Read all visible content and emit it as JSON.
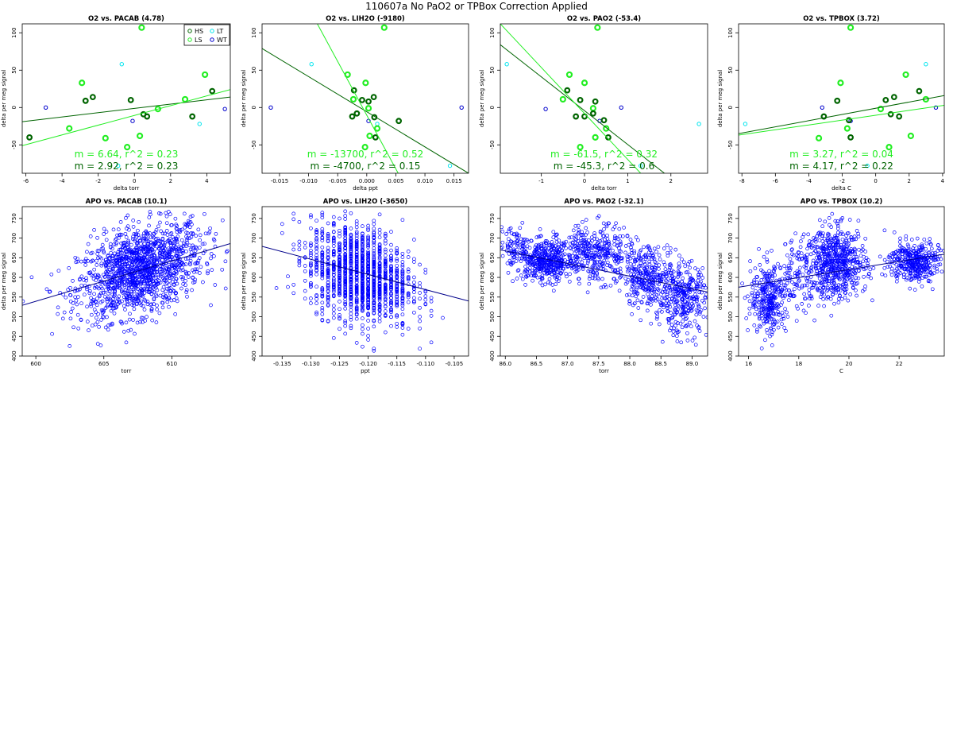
{
  "main_title": "110607a   No PaO2 or TPBox Correction Applied",
  "colors": {
    "HS": "#006400",
    "LS": "#22ee22",
    "LT": "#00e5ee",
    "WT": "#0000cd",
    "apo_points": "#0000ff",
    "apo_line": "#00008b"
  },
  "legend": {
    "position": "top-right of first panel",
    "entries": [
      {
        "label": "HS",
        "color": "#006400"
      },
      {
        "label": "LT",
        "color": "#00e5ee"
      },
      {
        "label": "LS",
        "color": "#22ee22"
      },
      {
        "label": "WT",
        "color": "#0000cd"
      }
    ]
  },
  "chart_data": [
    {
      "type": "scatter",
      "title": "O2 vs. PACAB (4.78)",
      "xlabel": "delta torr",
      "ylabel": "delta per meg signal",
      "xlim": [
        -6.2,
        5.3
      ],
      "ylim": [
        -88,
        112
      ],
      "xticks": [
        "-6",
        "-4",
        "-2",
        "0",
        "2",
        "4"
      ],
      "xtick_values": [
        -6,
        -4,
        -2,
        0,
        2,
        4
      ],
      "yticks": [
        "-50",
        "0",
        "50",
        "100"
      ],
      "ytick_values": [
        -50,
        0,
        50,
        100
      ],
      "legend": true,
      "points": {
        "HS": [
          [
            -5.8,
            -40
          ],
          [
            -2.7,
            9
          ],
          [
            -2.3,
            14
          ],
          [
            -0.2,
            10
          ],
          [
            0.5,
            -9
          ],
          [
            0.7,
            -12
          ],
          [
            3.2,
            -12
          ],
          [
            4.3,
            22
          ]
        ],
        "LS": [
          [
            -2.9,
            33
          ],
          [
            -3.6,
            -28
          ],
          [
            -1.6,
            -41
          ],
          [
            -0.4,
            -53
          ],
          [
            0.3,
            -38
          ],
          [
            1.3,
            -2
          ],
          [
            2.8,
            11
          ],
          [
            3.9,
            44
          ],
          [
            0.4,
            107
          ]
        ],
        "LT": [
          [
            -0.7,
            58
          ],
          [
            3.6,
            -22
          ],
          [
            -0.9,
            -78
          ]
        ],
        "WT": [
          [
            -4.9,
            0
          ],
          [
            5.0,
            -2
          ],
          [
            -0.1,
            -18
          ]
        ]
      },
      "regression": [
        {
          "group": "HS",
          "slope": 2.92,
          "r2": 0.23,
          "color": "#006400",
          "x": [
            -6.2,
            5.3
          ],
          "y": [
            -19,
            14
          ]
        },
        {
          "group": "LS",
          "slope": 6.64,
          "r2": 0.23,
          "color": "#22ee22",
          "x": [
            -6.2,
            5.3
          ],
          "y": [
            -51,
            24
          ]
        }
      ],
      "annotations": [
        {
          "text": "m = 6.64, r^2 = 0.23",
          "color": "#22ee22"
        },
        {
          "text": "m = 2.92, r^2 = 0.23",
          "color": "#006400"
        }
      ]
    },
    {
      "type": "scatter",
      "title": "O2 vs. LIH2O (-9180)",
      "xlabel": "delta ppt",
      "ylabel": "delta per meg signal",
      "xlim": [
        -0.018,
        0.0175
      ],
      "ylim": [
        -88,
        112
      ],
      "xticks": [
        "-0.015",
        "-0.010",
        "-0.005",
        "0.000",
        "0.005",
        "0.010",
        "0.015"
      ],
      "xtick_values": [
        -0.015,
        -0.01,
        -0.005,
        0,
        0.005,
        0.01,
        0.015
      ],
      "yticks": [
        "-50",
        "0",
        "50",
        "100"
      ],
      "ytick_values": [
        -50,
        0,
        50,
        100
      ],
      "points": {
        "HS": [
          [
            -0.0022,
            23
          ],
          [
            -0.0025,
            -12
          ],
          [
            -0.0017,
            -8
          ],
          [
            -0.0008,
            10
          ],
          [
            0.0003,
            8
          ],
          [
            0.0012,
            14
          ],
          [
            0.0013,
            -13
          ],
          [
            0.0015,
            -40
          ],
          [
            0.0055,
            -18
          ]
        ],
        "LS": [
          [
            -0.0033,
            44
          ],
          [
            -0.0002,
            33
          ],
          [
            -0.0023,
            11
          ],
          [
            0.0003,
            -1
          ],
          [
            0.0005,
            -38
          ],
          [
            0.0018,
            -28
          ],
          [
            -0.0003,
            -53
          ],
          [
            0.003,
            107
          ]
        ],
        "LT": [
          [
            -0.0095,
            58
          ],
          [
            0.0018,
            -22
          ],
          [
            0.0143,
            -78
          ]
        ],
        "WT": [
          [
            -0.0165,
            0
          ],
          [
            0.0163,
            0
          ],
          [
            0.0003,
            -18
          ]
        ]
      },
      "regression": [
        {
          "group": "HS",
          "slope": -4700,
          "r2": 0.15,
          "color": "#006400",
          "x": [
            -0.018,
            0.0175
          ],
          "y": [
            79,
            -88
          ]
        },
        {
          "group": "LS",
          "slope": -13700,
          "r2": 0.52,
          "color": "#22ee22",
          "x": [
            -0.0085,
            0.0054
          ],
          "y": [
            112,
            -88
          ]
        }
      ],
      "annotations": [
        {
          "text": "m = -13700, r^2 = 0.52",
          "color": "#22ee22"
        },
        {
          "text": "m = -4700, r^2 = 0.15",
          "color": "#006400"
        }
      ]
    },
    {
      "type": "scatter",
      "title": "O2 vs. PAO2 (-53.4)",
      "xlabel": "delta torr",
      "ylabel": "delta per meg signal",
      "xlim": [
        -1.95,
        2.85
      ],
      "ylim": [
        -88,
        112
      ],
      "xticks": [
        "-1",
        "0",
        "1",
        "2"
      ],
      "xtick_values": [
        -1,
        0,
        1,
        2
      ],
      "yticks": [
        "-50",
        "0",
        "50",
        "100"
      ],
      "ytick_values": [
        -50,
        0,
        50,
        100
      ],
      "points": {
        "HS": [
          [
            -0.4,
            23
          ],
          [
            -0.2,
            -12
          ],
          [
            -0.1,
            10
          ],
          [
            0.0,
            -12
          ],
          [
            0.2,
            -8
          ],
          [
            0.25,
            8
          ],
          [
            0.45,
            -17
          ],
          [
            0.55,
            -40
          ]
        ],
        "LS": [
          [
            -0.5,
            11
          ],
          [
            -0.35,
            44
          ],
          [
            0.0,
            33
          ],
          [
            0.2,
            -1
          ],
          [
            0.25,
            -40
          ],
          [
            0.5,
            -28
          ],
          [
            -0.1,
            -53
          ],
          [
            0.3,
            107
          ]
        ],
        "LT": [
          [
            -1.8,
            58
          ],
          [
            1.3,
            -78
          ],
          [
            2.65,
            -22
          ]
        ],
        "WT": [
          [
            0.85,
            0
          ],
          [
            -0.9,
            -2
          ],
          [
            0.35,
            -18
          ]
        ]
      },
      "regression": [
        {
          "group": "HS",
          "slope": -45.3,
          "r2": 0.6,
          "color": "#006400",
          "x": [
            -1.95,
            1.85
          ],
          "y": [
            84,
            -88
          ]
        },
        {
          "group": "LS",
          "slope": -61.5,
          "r2": 0.32,
          "color": "#22ee22",
          "x": [
            -1.95,
            1.3
          ],
          "y": [
            112,
            -88
          ]
        }
      ],
      "annotations": [
        {
          "text": "m = -61.5, r^2 = 0.32",
          "color": "#22ee22"
        },
        {
          "text": "m = -45.3, r^2 = 0.6",
          "color": "#006400"
        }
      ]
    },
    {
      "type": "scatter",
      "title": "O2 vs. TPBOX (3.72)",
      "xlabel": "delta C",
      "ylabel": "delta per meg signal",
      "xlim": [
        -8.2,
        4.1
      ],
      "ylim": [
        -88,
        112
      ],
      "xticks": [
        "-8",
        "-6",
        "-4",
        "-2",
        "0",
        "2",
        "4"
      ],
      "xtick_values": [
        -8,
        -6,
        -4,
        -2,
        0,
        2,
        4
      ],
      "yticks": [
        "-50",
        "0",
        "50",
        "100"
      ],
      "ytick_values": [
        -50,
        0,
        50,
        100
      ],
      "points": {
        "HS": [
          [
            -2.3,
            9
          ],
          [
            -1.6,
            -17
          ],
          [
            -1.5,
            -40
          ],
          [
            -3.1,
            -12
          ],
          [
            0.6,
            10
          ],
          [
            1.1,
            14
          ],
          [
            0.9,
            -9
          ],
          [
            1.4,
            -12
          ],
          [
            2.6,
            22
          ]
        ],
        "LS": [
          [
            -2.1,
            33
          ],
          [
            -1.7,
            -28
          ],
          [
            -3.4,
            -41
          ],
          [
            0.8,
            -53
          ],
          [
            1.8,
            44
          ],
          [
            2.1,
            -38
          ],
          [
            3.0,
            11
          ],
          [
            0.3,
            -2
          ],
          [
            -1.5,
            107
          ]
        ],
        "LT": [
          [
            3.0,
            58
          ],
          [
            -7.8,
            -22
          ],
          [
            -0.5,
            -78
          ]
        ],
        "WT": [
          [
            -3.2,
            0
          ],
          [
            3.6,
            0
          ],
          [
            -1.5,
            -18
          ]
        ]
      },
      "regression": [
        {
          "group": "HS",
          "slope": 4.17,
          "r2": 0.22,
          "color": "#006400",
          "x": [
            -8.2,
            4.1
          ],
          "y": [
            -35,
            16
          ]
        },
        {
          "group": "LS",
          "slope": 3.27,
          "r2": 0.04,
          "color": "#22ee22",
          "x": [
            -8.2,
            4.1
          ],
          "y": [
            -37,
            3
          ]
        }
      ],
      "annotations": [
        {
          "text": "m = 3.27, r^2 = 0.04",
          "color": "#22ee22"
        },
        {
          "text": "m = 4.17, r^2 = 0.22",
          "color": "#006400"
        }
      ]
    },
    {
      "type": "scatter",
      "title": "APO vs. PACAB (10.1)",
      "xlabel": "torr",
      "ylabel": "delta per meg signal",
      "xlim": [
        599,
        614.3
      ],
      "ylim": [
        400,
        780
      ],
      "xticks": [
        "600",
        "605",
        "610"
      ],
      "xtick_values": [
        600,
        605,
        610
      ],
      "yticks": [
        "400",
        "450",
        "500",
        "550",
        "600",
        "650",
        "700",
        "750"
      ],
      "ytick_values": [
        400,
        450,
        500,
        550,
        600,
        650,
        700,
        750
      ],
      "cloud": {
        "n": 1400,
        "x_center": 607.7,
        "x_sd": 2.3,
        "y_center": 618,
        "y_sd": 55,
        "slope": 10.1
      },
      "regression": {
        "slope": 10.1,
        "color": "#00008b",
        "x": [
          599,
          614.3
        ],
        "y": [
          529,
          686
        ]
      }
    },
    {
      "type": "scatter",
      "title": "APO vs. LIH2O (-3650)",
      "xlabel": "ppt",
      "ylabel": "delta per meg signal",
      "xlim": [
        -0.1385,
        -0.1025
      ],
      "ylim": [
        400,
        780
      ],
      "xticks": [
        "-0.135",
        "-0.130",
        "-0.125",
        "-0.120",
        "-0.115",
        "-0.110",
        "-0.105"
      ],
      "xtick_values": [
        -0.135,
        -0.13,
        -0.125,
        -0.12,
        -0.115,
        -0.11,
        -0.105
      ],
      "yticks": [
        "400",
        "450",
        "500",
        "550",
        "600",
        "650",
        "700",
        "750"
      ],
      "ytick_values": [
        400,
        450,
        500,
        550,
        600,
        650,
        700,
        750
      ],
      "cloud": {
        "n": 1400,
        "x_center": -0.1215,
        "x_sd": 0.0045,
        "y_center": 610,
        "y_sd": 60,
        "slope": -3650,
        "quantize": 0.001
      },
      "regression": {
        "slope": -3650,
        "color": "#00008b",
        "x": [
          -0.1385,
          -0.1025
        ],
        "y": [
          679,
          540
        ]
      }
    },
    {
      "type": "scatter",
      "title": "APO vs. PAO2 (-32.1)",
      "xlabel": "torr",
      "ylabel": "delta per meg signal",
      "xlim": [
        85.92,
        89.25
      ],
      "ylim": [
        400,
        780
      ],
      "xticks": [
        "86.0",
        "86.5",
        "87.0",
        "87.5",
        "88.0",
        "88.5",
        "89.0"
      ],
      "xtick_values": [
        86.0,
        86.5,
        87.0,
        87.5,
        88.0,
        88.5,
        89.0
      ],
      "yticks": [
        "400",
        "450",
        "500",
        "550",
        "600",
        "650",
        "700",
        "750"
      ],
      "ytick_values": [
        400,
        450,
        500,
        550,
        600,
        650,
        700,
        750
      ],
      "clusters": [
        {
          "n": 420,
          "x_center": 86.65,
          "x_sd": 0.22,
          "y_center": 640,
          "y_sd": 25
        },
        {
          "n": 80,
          "x_center": 86.15,
          "x_sd": 0.12,
          "y_center": 680,
          "y_sd": 25
        },
        {
          "n": 380,
          "x_center": 87.45,
          "x_sd": 0.3,
          "y_center": 660,
          "y_sd": 35
        },
        {
          "n": 300,
          "x_center": 88.3,
          "x_sd": 0.2,
          "y_center": 600,
          "y_sd": 40
        },
        {
          "n": 320,
          "x_center": 88.85,
          "x_sd": 0.2,
          "y_center": 545,
          "y_sd": 45
        }
      ],
      "regression": {
        "slope": -32.1,
        "color": "#00008b",
        "x": [
          85.92,
          89.25
        ],
        "y": [
          670,
          563
        ]
      }
    },
    {
      "type": "scatter",
      "title": "APO vs. TPBOX (10.2)",
      "xlabel": "C",
      "ylabel": "delta per meg signal",
      "xlim": [
        15.6,
        23.8
      ],
      "ylim": [
        400,
        780
      ],
      "xticks": [
        "16",
        "18",
        "20",
        "22"
      ],
      "xtick_values": [
        16,
        18,
        20,
        22
      ],
      "yticks": [
        "400",
        "450",
        "500",
        "550",
        "600",
        "650",
        "700",
        "750"
      ],
      "ytick_values": [
        400,
        450,
        500,
        550,
        600,
        650,
        700,
        750
      ],
      "clusters": [
        {
          "n": 300,
          "x_center": 16.8,
          "x_sd": 0.35,
          "y_center": 545,
          "y_sd": 45
        },
        {
          "n": 120,
          "x_center": 17.9,
          "x_sd": 0.4,
          "y_center": 600,
          "y_sd": 45
        },
        {
          "n": 600,
          "x_center": 19.5,
          "x_sd": 0.6,
          "y_center": 635,
          "y_sd": 45
        },
        {
          "n": 380,
          "x_center": 22.6,
          "x_sd": 0.5,
          "y_center": 640,
          "y_sd": 25
        }
      ],
      "regression": {
        "slope": 10.2,
        "color": "#00008b",
        "x": [
          15.6,
          23.8
        ],
        "y": [
          575,
          659
        ]
      }
    }
  ]
}
